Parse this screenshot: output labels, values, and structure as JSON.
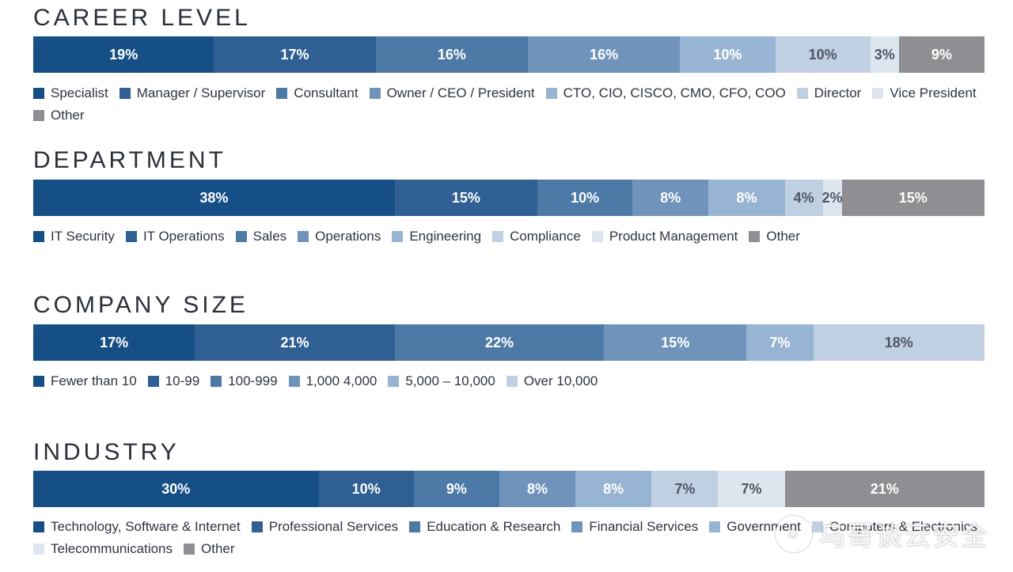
{
  "colors": {
    "c1": "#164f85",
    "c2": "#2f5f93",
    "c3": "#4d79a7",
    "c4": "#6f93ba",
    "c5": "#97b4d2",
    "c6": "#bfd0e2",
    "c7": "#dde6ef",
    "c8": "#8f8f93",
    "dark_label": "#4f5665",
    "white_label": "#ffffff"
  },
  "chart_data": [
    {
      "type": "bar",
      "title": "CAREER LEVEL",
      "categories": [
        "Specialist",
        "Manager / Supervisor",
        "Consultant",
        "Owner / CEO / President",
        "CTO, CIO, CISCO, CMO, CFO, COO",
        "Director",
        "Vice President",
        "Other"
      ],
      "values": [
        19,
        17,
        16,
        16,
        10,
        10,
        3,
        9
      ],
      "labels": [
        "19%",
        "17%",
        "16%",
        "16%",
        "10%",
        "10%",
        "3%",
        "9%"
      ]
    },
    {
      "type": "bar",
      "title": "DEPARTMENT",
      "categories": [
        "IT Security",
        "IT Operations",
        "Sales",
        "Operations",
        "Engineering",
        "Compliance",
        "Product Management",
        "Other"
      ],
      "values": [
        38,
        15,
        10,
        8,
        8,
        4,
        2,
        15
      ],
      "labels": [
        "38%",
        "15%",
        "10%",
        "8%",
        "8%",
        "4%",
        "2%",
        "15%"
      ]
    },
    {
      "type": "bar",
      "title": "COMPANY SIZE",
      "categories": [
        "Fewer than 10",
        "10-99",
        "100-999",
        "1,000 4,000",
        "5,000 – 10,000",
        "Over 10,000"
      ],
      "values": [
        17,
        21,
        22,
        15,
        7,
        18
      ],
      "labels": [
        "17%",
        "21%",
        "22%",
        "15%",
        "7%",
        "18%"
      ]
    },
    {
      "type": "bar",
      "title": "INDUSTRY",
      "categories": [
        "Technology, Software & Internet",
        "Professional Services",
        "Education & Research",
        "Financial Services",
        "Government",
        "Computers & Electronics",
        "Telecommunications",
        "Other"
      ],
      "values": [
        30,
        10,
        9,
        8,
        8,
        7,
        7,
        21
      ],
      "labels": [
        "30%",
        "10%",
        "9%",
        "8%",
        "8%",
        "7%",
        "7%",
        "21%"
      ]
    }
  ],
  "watermark": {
    "text": "乌哥谈云安全"
  }
}
